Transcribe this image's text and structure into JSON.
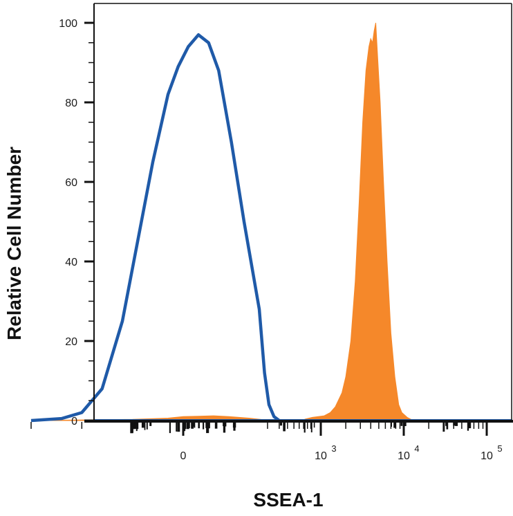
{
  "chart_data": {
    "type": "area",
    "title": "",
    "xlabel": "SSEA-1",
    "ylabel": "Relative Cell Number",
    "xscale": "biexponential",
    "ylim": [
      0,
      100
    ],
    "yticks": [
      "0",
      "20",
      "40",
      "60",
      "80",
      "100"
    ],
    "xticks": [
      {
        "value": 0,
        "base": "0",
        "exp": ""
      },
      {
        "value": 1000,
        "base": "10",
        "exp": "3"
      },
      {
        "value": 10000,
        "base": "10",
        "exp": "4"
      },
      {
        "value": 100000,
        "base": "10",
        "exp": "5"
      }
    ],
    "grid": false,
    "legend": "none",
    "series": [
      {
        "style": "filled",
        "color": "#f5882a",
        "points": [
          [
            -300,
            0
          ],
          [
            -100,
            0.3
          ],
          [
            -30,
            0.6
          ],
          [
            0,
            1.0
          ],
          [
            30,
            1.1
          ],
          [
            60,
            1.2
          ],
          [
            90,
            1.0
          ],
          [
            130,
            0.6
          ],
          [
            180,
            0.2
          ],
          [
            250,
            0
          ],
          [
            650,
            0
          ],
          [
            750,
            0.4
          ],
          [
            850,
            0.6
          ],
          [
            950,
            0.8
          ],
          [
            1100,
            1.2
          ],
          [
            1300,
            2.0
          ],
          [
            1500,
            3.5
          ],
          [
            1800,
            7
          ],
          [
            2000,
            11
          ],
          [
            2300,
            20
          ],
          [
            2600,
            35
          ],
          [
            2900,
            55
          ],
          [
            3200,
            75
          ],
          [
            3500,
            88
          ],
          [
            3800,
            94
          ],
          [
            4000,
            96
          ],
          [
            4200,
            95
          ],
          [
            4400,
            98
          ],
          [
            4600,
            100
          ],
          [
            4800,
            93
          ],
          [
            5200,
            80
          ],
          [
            5700,
            60
          ],
          [
            6300,
            40
          ],
          [
            7000,
            22
          ],
          [
            7800,
            11
          ],
          [
            8700,
            4
          ],
          [
            9500,
            2
          ],
          [
            11000,
            0.8
          ],
          [
            13000,
            0
          ]
        ]
      },
      {
        "style": "line",
        "color": "#1f5aa8",
        "points": [
          [
            -300,
            0
          ],
          [
            -240,
            0.5
          ],
          [
            -200,
            2
          ],
          [
            -160,
            8
          ],
          [
            -120,
            25
          ],
          [
            -90,
            45
          ],
          [
            -60,
            65
          ],
          [
            -30,
            82
          ],
          [
            -10,
            89
          ],
          [
            10,
            94
          ],
          [
            30,
            97
          ],
          [
            50,
            95
          ],
          [
            70,
            88
          ],
          [
            95,
            70
          ],
          [
            120,
            50
          ],
          [
            150,
            28
          ],
          [
            180,
            12
          ],
          [
            210,
            4
          ],
          [
            250,
            1
          ],
          [
            300,
            0
          ]
        ]
      }
    ]
  }
}
